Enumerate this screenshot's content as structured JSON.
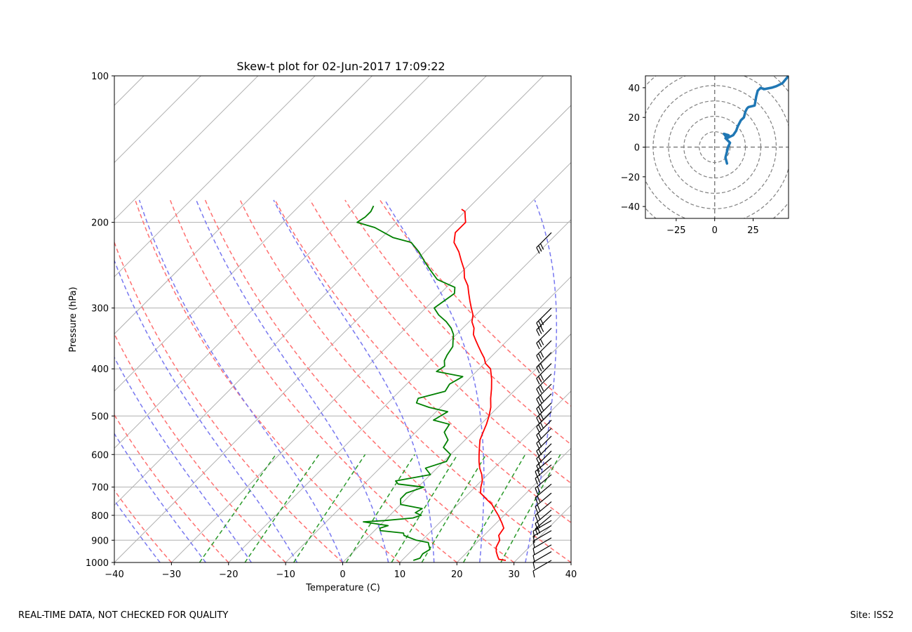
{
  "colors": {
    "temperature": "#ff0000",
    "dewpoint": "#008000",
    "dry_adiabat": "#ff7070",
    "moist_adiabat": "#7878f0",
    "mixing_ratio": "#2a992a",
    "isotherm": "#b0b0b0",
    "hodograph": "#1f77b4",
    "hodo_ring": "#808080",
    "barb": "#000000"
  },
  "footer": {
    "left": "REAL-TIME DATA, NOT CHECKED FOR QUALITY",
    "right": "Site: ISS2"
  },
  "chart_data": [
    {
      "type": "line",
      "name": "skew-t",
      "title": "Skew-t plot for 02-Jun-2017 17:09:22",
      "xlabel": "Temperature (C)",
      "ylabel": "Pressure (hPa)",
      "xlim": [
        -40,
        40
      ],
      "ylim": [
        1000,
        100
      ],
      "y_scale": "log",
      "x_ticks": [
        -40,
        -30,
        -20,
        -10,
        0,
        10,
        20,
        30,
        40
      ],
      "y_ticks": [
        1000,
        900,
        800,
        700,
        600,
        500,
        400,
        300,
        200,
        100
      ],
      "grid": true,
      "series": [
        {
          "name": "Temperature",
          "points": [
            {
              "p": 990,
              "t": 28.2
            },
            {
              "p": 985,
              "t": 26.8
            },
            {
              "p": 970,
              "t": 26.0
            },
            {
              "p": 950,
              "t": 25.0
            },
            {
              "p": 930,
              "t": 24.2
            },
            {
              "p": 900,
              "t": 23.6
            },
            {
              "p": 880,
              "t": 22.6
            },
            {
              "p": 850,
              "t": 22.2
            },
            {
              "p": 830,
              "t": 21.0
            },
            {
              "p": 800,
              "t": 19.0
            },
            {
              "p": 780,
              "t": 17.5
            },
            {
              "p": 760,
              "t": 16.0
            },
            {
              "p": 740,
              "t": 14.0
            },
            {
              "p": 720,
              "t": 12.0
            },
            {
              "p": 700,
              "t": 11.0
            },
            {
              "p": 680,
              "t": 10.2
            },
            {
              "p": 660,
              "t": 9.0
            },
            {
              "p": 640,
              "t": 7.5
            },
            {
              "p": 620,
              "t": 6.2
            },
            {
              "p": 600,
              "t": 5.0
            },
            {
              "p": 580,
              "t": 3.8
            },
            {
              "p": 560,
              "t": 2.6
            },
            {
              "p": 540,
              "t": 1.8
            },
            {
              "p": 520,
              "t": 1.0
            },
            {
              "p": 500,
              "t": 0.0
            },
            {
              "p": 480,
              "t": -1.2
            },
            {
              "p": 460,
              "t": -2.8
            },
            {
              "p": 440,
              "t": -4.3
            },
            {
              "p": 420,
              "t": -6.0
            },
            {
              "p": 400,
              "t": -8.0
            },
            {
              "p": 390,
              "t": -9.8
            },
            {
              "p": 380,
              "t": -11.0
            },
            {
              "p": 370,
              "t": -12.5
            },
            {
              "p": 360,
              "t": -14.0
            },
            {
              "p": 350,
              "t": -15.5
            },
            {
              "p": 340,
              "t": -17.0
            },
            {
              "p": 330,
              "t": -18.0
            },
            {
              "p": 320,
              "t": -19.5
            },
            {
              "p": 310,
              "t": -20.5
            },
            {
              "p": 300,
              "t": -22.0
            },
            {
              "p": 290,
              "t": -23.5
            },
            {
              "p": 280,
              "t": -25.0
            },
            {
              "p": 270,
              "t": -26.5
            },
            {
              "p": 260,
              "t": -28.5
            },
            {
              "p": 250,
              "t": -30.0
            },
            {
              "p": 240,
              "t": -32.0
            },
            {
              "p": 230,
              "t": -34.0
            },
            {
              "p": 220,
              "t": -36.5
            },
            {
              "p": 210,
              "t": -38.0
            },
            {
              "p": 200,
              "t": -38.0
            },
            {
              "p": 195,
              "t": -39.0
            },
            {
              "p": 190,
              "t": -40.0
            },
            {
              "p": 188,
              "t": -41.0
            }
          ]
        },
        {
          "name": "Dewpoint",
          "points": [
            {
              "p": 990,
              "t": 12.0
            },
            {
              "p": 980,
              "t": 12.8
            },
            {
              "p": 960,
              "t": 12.5
            },
            {
              "p": 940,
              "t": 13.0
            },
            {
              "p": 920,
              "t": 12.0
            },
            {
              "p": 910,
              "t": 11.5
            },
            {
              "p": 900,
              "t": 9.0
            },
            {
              "p": 880,
              "t": 6.0
            },
            {
              "p": 870,
              "t": 5.5
            },
            {
              "p": 860,
              "t": 1.0
            },
            {
              "p": 850,
              "t": 0.5
            },
            {
              "p": 840,
              "t": 1.5
            },
            {
              "p": 825,
              "t": -3.5
            },
            {
              "p": 820,
              "t": 0.0
            },
            {
              "p": 810,
              "t": 4.5
            },
            {
              "p": 800,
              "t": 5.5
            },
            {
              "p": 790,
              "t": 4.0
            },
            {
              "p": 775,
              "t": 4.5
            },
            {
              "p": 760,
              "t": 0.0
            },
            {
              "p": 740,
              "t": -1.0
            },
            {
              "p": 720,
              "t": -1.0
            },
            {
              "p": 700,
              "t": 1.0
            },
            {
              "p": 690,
              "t": -4.0
            },
            {
              "p": 680,
              "t": -5.0
            },
            {
              "p": 660,
              "t": 0.0
            },
            {
              "p": 640,
              "t": -2.0
            },
            {
              "p": 620,
              "t": 0.5
            },
            {
              "p": 600,
              "t": 0.0
            },
            {
              "p": 580,
              "t": -2.5
            },
            {
              "p": 560,
              "t": -3.0
            },
            {
              "p": 540,
              "t": -5.0
            },
            {
              "p": 520,
              "t": -5.5
            },
            {
              "p": 510,
              "t": -9.0
            },
            {
              "p": 500,
              "t": -8.5
            },
            {
              "p": 490,
              "t": -8.0
            },
            {
              "p": 480,
              "t": -12.0
            },
            {
              "p": 470,
              "t": -15.0
            },
            {
              "p": 460,
              "t": -15.5
            },
            {
              "p": 445,
              "t": -12.0
            },
            {
              "p": 430,
              "t": -12.5
            },
            {
              "p": 415,
              "t": -11.5
            },
            {
              "p": 405,
              "t": -17.0
            },
            {
              "p": 395,
              "t": -16.5
            },
            {
              "p": 385,
              "t": -17.5
            },
            {
              "p": 375,
              "t": -18.0
            },
            {
              "p": 360,
              "t": -18.5
            },
            {
              "p": 350,
              "t": -19.5
            },
            {
              "p": 340,
              "t": -20.5
            },
            {
              "p": 330,
              "t": -22.0
            },
            {
              "p": 320,
              "t": -24.0
            },
            {
              "p": 310,
              "t": -26.5
            },
            {
              "p": 300,
              "t": -28.5
            },
            {
              "p": 290,
              "t": -28.0
            },
            {
              "p": 280,
              "t": -27.5
            },
            {
              "p": 272,
              "t": -28.5
            },
            {
              "p": 262,
              "t": -33.0
            },
            {
              "p": 250,
              "t": -36.0
            },
            {
              "p": 240,
              "t": -38.5
            },
            {
              "p": 230,
              "t": -41.0
            },
            {
              "p": 220,
              "t": -44.0
            },
            {
              "p": 215,
              "t": -48.0
            },
            {
              "p": 205,
              "t": -53.0
            },
            {
              "p": 200,
              "t": -57.0
            },
            {
              "p": 195,
              "t": -56.5
            },
            {
              "p": 190,
              "t": -56.5
            },
            {
              "p": 185,
              "t": -57.0
            }
          ]
        }
      ]
    },
    {
      "type": "line",
      "name": "hodograph",
      "xlim": [
        -45,
        48
      ],
      "ylim": [
        -48,
        48
      ],
      "x_ticks": [
        -25,
        0,
        25
      ],
      "y_ticks": [
        -40,
        -20,
        0,
        20,
        40
      ],
      "rings": [
        10,
        20,
        30,
        40,
        50,
        60
      ],
      "series": [
        {
          "name": "Wind",
          "u": [
            8,
            7,
            8,
            9,
            8,
            10,
            7,
            9,
            6,
            8,
            10,
            12,
            14,
            15,
            17,
            19,
            20,
            21,
            22,
            26,
            27,
            28,
            30,
            32,
            37,
            40,
            44,
            48
          ],
          "v": [
            -11,
            -7,
            -3,
            1,
            -2,
            3,
            6,
            8,
            9,
            6,
            7,
            8,
            11,
            14,
            18,
            20,
            24,
            26,
            27,
            28,
            34,
            38,
            40,
            39,
            40,
            41,
            43,
            48
          ]
        }
      ]
    }
  ]
}
